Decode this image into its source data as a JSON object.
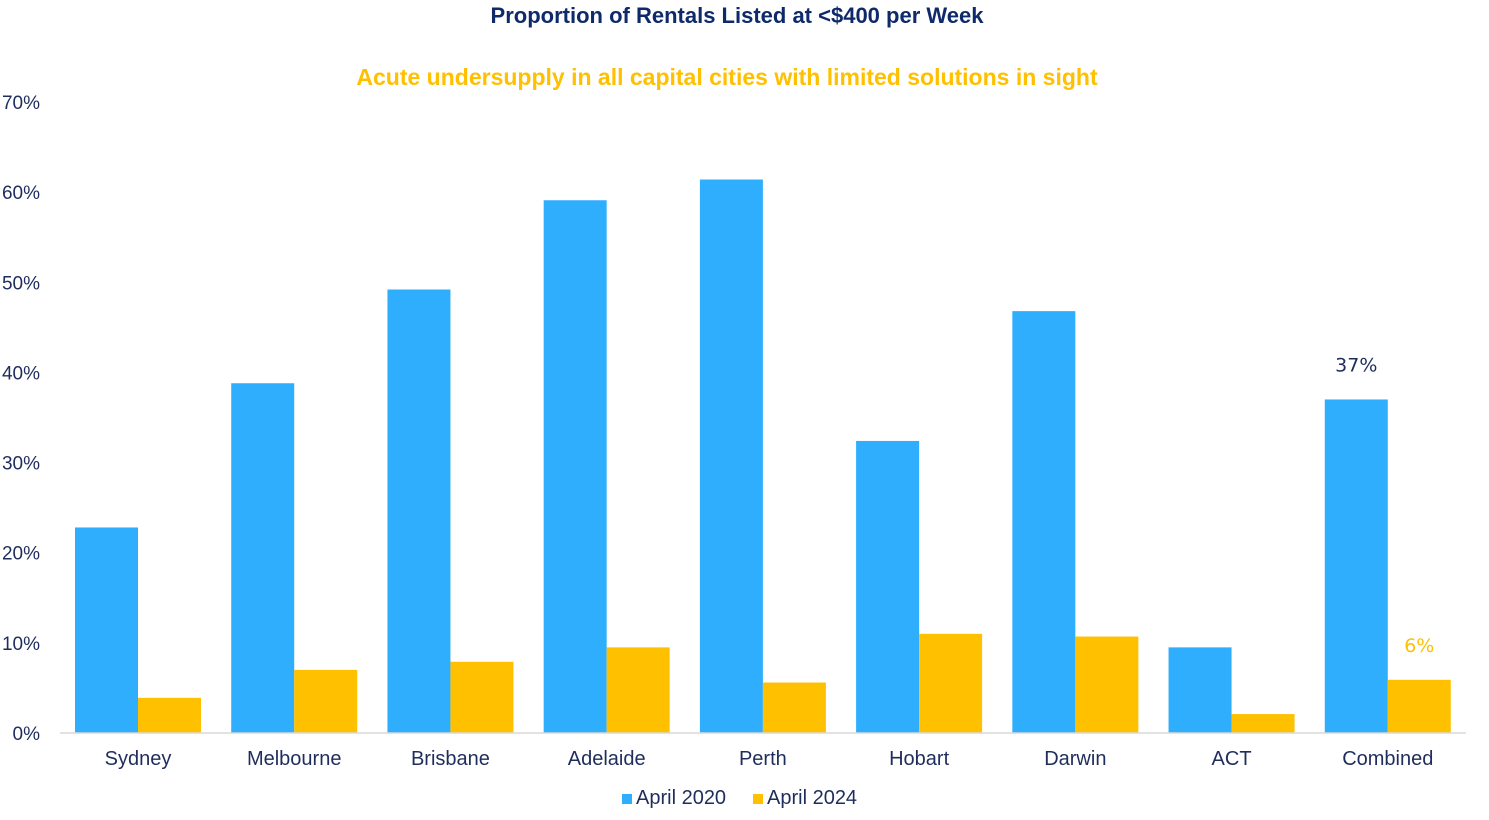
{
  "chart_data": {
    "type": "bar",
    "title": "Proportion of Rentals Listed at <$400 per Week",
    "subtitle": "Acute undersupply in all capital cities with limited solutions in sight",
    "xlabel": "",
    "ylabel": "",
    "categories": [
      "Sydney",
      "Melbourne",
      "Brisbane",
      "Adelaide",
      "Perth",
      "Hobart",
      "Darwin",
      "ACT",
      "Combined"
    ],
    "series": [
      {
        "name": "April 2020",
        "color": "#2EAEFC",
        "values": [
          22.8,
          38.8,
          49.2,
          59.1,
          61.4,
          32.4,
          46.8,
          9.5,
          37.0
        ]
      },
      {
        "name": "April 2024",
        "color": "#FFC000",
        "values": [
          3.9,
          7.0,
          7.9,
          9.5,
          5.6,
          11.0,
          10.7,
          2.1,
          5.9
        ]
      }
    ],
    "y_ticks": [
      "0%",
      "10%",
      "20%",
      "30%",
      "40%",
      "50%",
      "60%",
      "70%"
    ],
    "ylim": [
      0,
      70
    ],
    "grid": false,
    "legend": "bottom-center",
    "annotations": [
      {
        "category": "Combined",
        "series": "April 2020",
        "text": "37%",
        "color": "#1F2D5C"
      },
      {
        "category": "Combined",
        "series": "April 2024",
        "text": "6%",
        "color": "#FFC000"
      }
    ],
    "colors": {
      "title": "#0E2A6B",
      "subtitle": "#FFC000",
      "axis_text": "#1F2D5C",
      "axis_line": "#D9D9D9"
    }
  }
}
